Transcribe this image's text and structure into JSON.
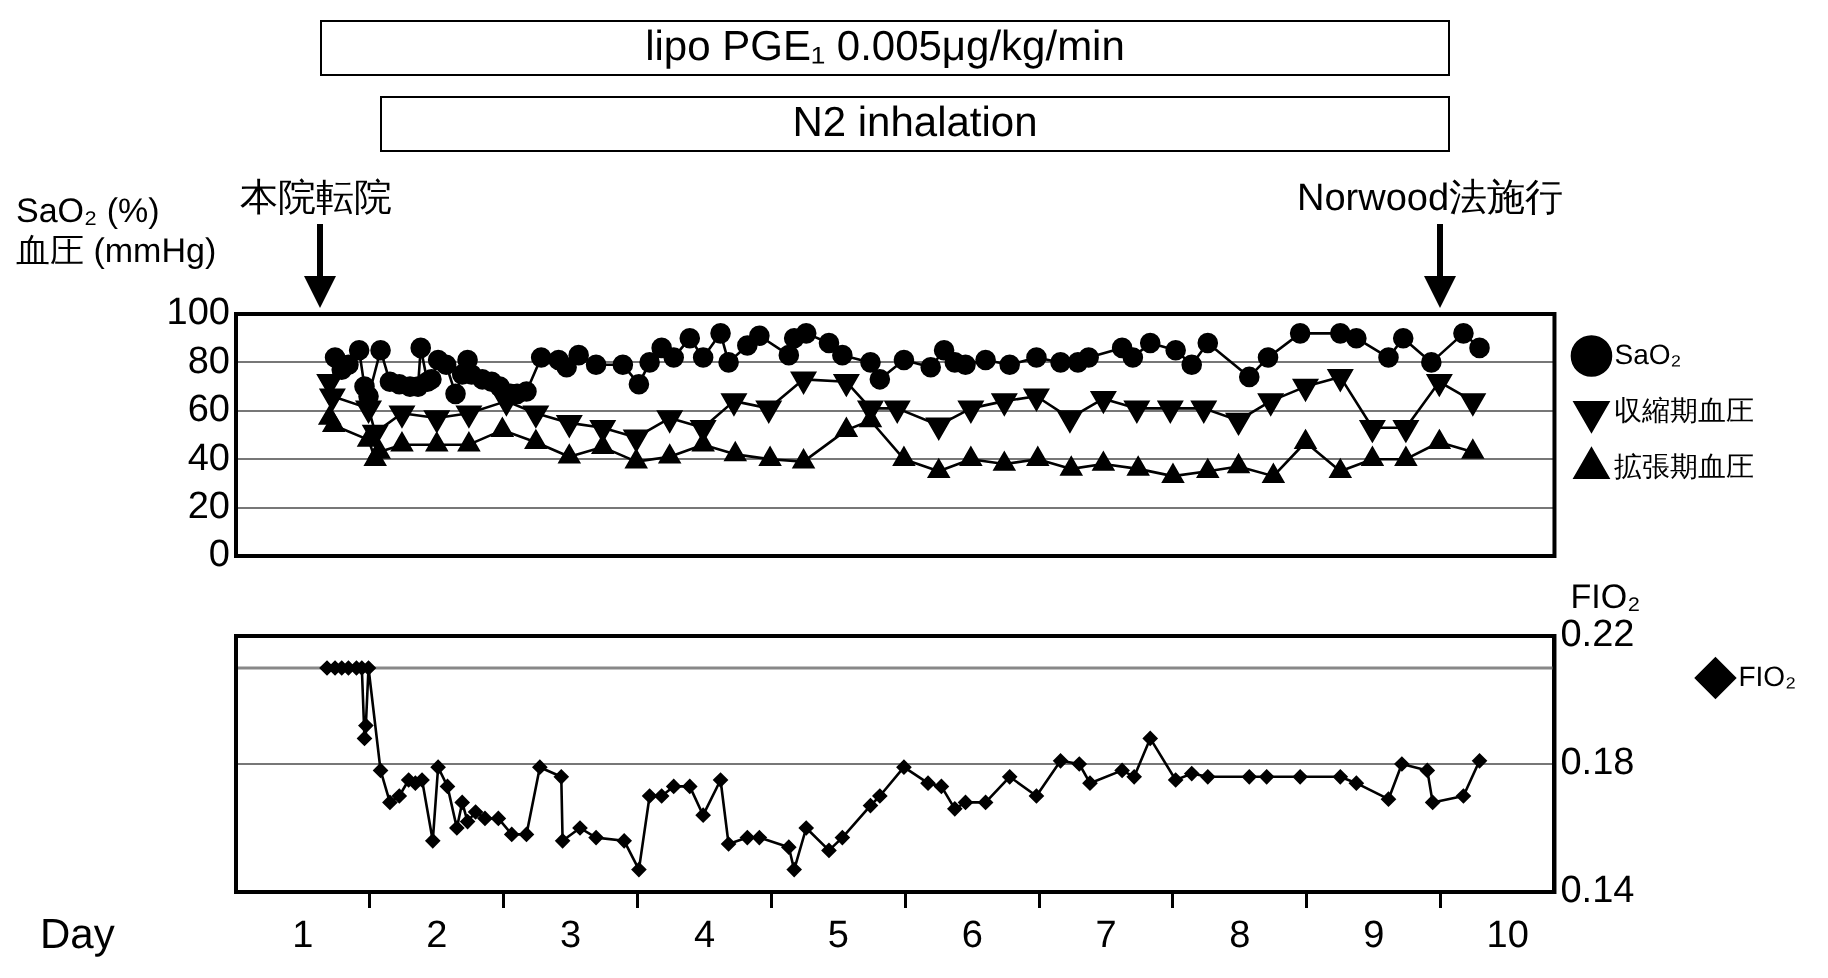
{
  "chart_data": [
    {
      "type": "line",
      "ylabel": "SaO₂ (%)\n血圧  (mmHg)",
      "xlim": [
        0.5,
        10.35
      ],
      "ylim": [
        0,
        100
      ],
      "yticks": [
        0,
        20,
        40,
        60,
        80,
        100
      ],
      "tick_labels": "y",
      "grid": "y",
      "legend": "right",
      "line_style": "solid",
      "annotations": [
        "lipo PGE₁  0.005μg/kg/min",
        "N2 inhalation",
        "本院転院",
        "Norwood法施行"
      ],
      "series": [
        {
          "name": "SaO₂",
          "color": "#000000",
          "marker": "circle",
          "x": [
            1.24,
            1.29,
            1.34,
            1.42,
            1.46,
            1.49,
            1.58,
            1.65,
            1.72,
            1.8,
            1.86,
            1.88,
            1.93,
            1.96,
            2.01,
            2.07,
            2.14,
            2.19,
            2.23,
            2.26,
            2.34,
            2.41,
            2.47,
            2.55,
            2.6,
            2.67,
            2.78,
            2.91,
            2.97,
            3.06,
            3.19,
            3.39,
            3.51,
            3.59,
            3.68,
            3.77,
            3.89,
            3.99,
            4.12,
            4.18,
            4.32,
            4.41,
            4.63,
            4.67,
            4.76,
            4.93,
            5.03,
            5.24,
            5.31,
            5.49,
            5.69,
            5.79,
            5.87,
            5.95,
            6.1,
            6.28,
            6.48,
            6.66,
            6.79,
            6.87,
            7.12,
            7.2,
            7.33,
            7.52,
            7.64,
            7.76,
            8.07,
            8.21,
            8.45,
            8.75,
            8.87,
            9.11,
            9.22,
            9.43,
            9.67,
            9.79
          ],
          "values": [
            82,
            77,
            79,
            85,
            70,
            66,
            85,
            72,
            71,
            70,
            70,
            86,
            72,
            73,
            81,
            79,
            67,
            75,
            81,
            75,
            73,
            72,
            70,
            67,
            67,
            68,
            82,
            81,
            78,
            83,
            79,
            79,
            71,
            80,
            86,
            82,
            90,
            82,
            92,
            80,
            87,
            91,
            83,
            90,
            92,
            88,
            83,
            80,
            73,
            81,
            78,
            85,
            80,
            79,
            81,
            79,
            82,
            80,
            80,
            82,
            86,
            82,
            88,
            85,
            79,
            88,
            74,
            82,
            92,
            92,
            90,
            82,
            90,
            80,
            92,
            86
          ]
        },
        {
          "name": "収縮期血圧",
          "color": "#000000",
          "marker": "triangle-down",
          "x": [
            1.2,
            1.22,
            1.49,
            1.54,
            1.74,
            2.0,
            2.24,
            2.52,
            2.74,
            2.99,
            3.24,
            3.49,
            3.74,
            3.99,
            4.22,
            4.48,
            4.74,
            5.06,
            5.24,
            5.44,
            5.75,
            5.99,
            6.24,
            6.48,
            6.73,
            6.98,
            7.23,
            7.48,
            7.73,
            7.99,
            8.23,
            8.49,
            8.75,
            8.99,
            9.24,
            9.49,
            9.74
          ],
          "values": [
            72,
            66,
            61,
            51,
            59,
            57,
            59,
            64,
            59,
            55,
            53,
            49,
            57,
            53,
            64,
            61,
            73,
            72,
            61,
            61,
            54,
            61,
            64,
            66,
            57,
            65,
            61,
            61,
            61,
            56,
            64,
            70,
            74,
            53,
            53,
            72,
            64
          ]
        },
        {
          "name": "拡張期血圧",
          "color": "#000000",
          "marker": "triangle",
          "x": [
            1.2,
            1.23,
            1.49,
            1.54,
            1.57,
            1.74,
            2.0,
            2.24,
            2.49,
            2.74,
            2.99,
            3.24,
            3.49,
            3.74,
            3.99,
            4.23,
            4.49,
            4.74,
            5.06,
            5.24,
            5.49,
            5.75,
            5.99,
            6.24,
            6.49,
            6.74,
            6.98,
            7.24,
            7.5,
            7.76,
            7.99,
            8.25,
            8.49,
            8.75,
            8.99,
            9.24,
            9.49,
            9.74
          ],
          "values": [
            57,
            54,
            48,
            40,
            43,
            46,
            46,
            46,
            52,
            47,
            41,
            45,
            39,
            41,
            46,
            42,
            40,
            39,
            52,
            56,
            40,
            35,
            40,
            38,
            40,
            36,
            38,
            36,
            33,
            35,
            37,
            33,
            47,
            35,
            40,
            40,
            47,
            43
          ]
        }
      ]
    },
    {
      "type": "line",
      "xlabel": "Day",
      "ylabel": "FIO₂",
      "xlim": [
        0.5,
        10.35
      ],
      "xticks": [
        1,
        {
          "value": 1.5,
          "label": null
        },
        2,
        {
          "value": 2.5,
          "label": null
        },
        3,
        {
          "value": 3.5,
          "label": null
        },
        4,
        {
          "value": 4.5,
          "label": null
        },
        5,
        {
          "value": 5.5,
          "label": null
        },
        6,
        {
          "value": 6.5,
          "label": null
        },
        7,
        {
          "value": 7.5,
          "label": null
        },
        8,
        {
          "value": 8.5,
          "label": null
        },
        9,
        {
          "value": 9.5,
          "label": null
        },
        10
      ],
      "ylim": [
        0.14,
        0.22
      ],
      "yticks": [
        0.14,
        0.18,
        0.22
      ],
      "grid": "y",
      "legend": "right",
      "line_style": "solid",
      "ref_lines": [
        {
          "axis": "y",
          "value": 0.21,
          "color": "#888888"
        }
      ],
      "series": [
        {
          "name": "FIO₂",
          "color": "#000000",
          "marker": "diamond",
          "x": [
            1.18,
            1.24,
            1.29,
            1.34,
            1.4,
            1.44,
            1.46,
            1.47,
            1.49,
            1.58,
            1.65,
            1.72,
            1.79,
            1.84,
            1.89,
            1.97,
            2.01,
            2.08,
            2.15,
            2.19,
            2.23,
            2.29,
            2.36,
            2.46,
            2.56,
            2.67,
            2.77,
            2.93,
            2.94,
            3.07,
            3.19,
            3.4,
            3.51,
            3.59,
            3.68,
            3.77,
            3.89,
            3.99,
            4.12,
            4.18,
            4.32,
            4.41,
            4.63,
            4.67,
            4.76,
            4.93,
            5.03,
            5.24,
            5.31,
            5.49,
            5.67,
            5.77,
            5.87,
            5.95,
            6.1,
            6.28,
            6.48,
            6.66,
            6.8,
            6.88,
            7.12,
            7.21,
            7.33,
            7.52,
            7.64,
            7.76,
            8.07,
            8.2,
            8.45,
            8.75,
            8.87,
            9.11,
            9.21,
            9.4,
            9.44,
            9.67,
            9.79
          ],
          "values": [
            0.21,
            0.21,
            0.21,
            0.21,
            0.21,
            0.21,
            0.188,
            0.192,
            0.21,
            0.178,
            0.168,
            0.17,
            0.175,
            0.174,
            0.175,
            0.156,
            0.179,
            0.173,
            0.16,
            0.168,
            0.162,
            0.165,
            0.163,
            0.163,
            0.158,
            0.158,
            0.179,
            0.176,
            0.156,
            0.16,
            0.157,
            0.156,
            0.147,
            0.17,
            0.17,
            0.173,
            0.173,
            0.164,
            0.175,
            0.155,
            0.157,
            0.157,
            0.154,
            0.147,
            0.16,
            0.153,
            0.157,
            0.167,
            0.17,
            0.179,
            0.174,
            0.173,
            0.166,
            0.168,
            0.168,
            0.176,
            0.17,
            0.181,
            0.18,
            0.174,
            0.178,
            0.176,
            0.188,
            0.175,
            0.177,
            0.176,
            0.176,
            0.176,
            0.176,
            0.176,
            0.174,
            0.169,
            0.18,
            0.178,
            0.168,
            0.17,
            0.181
          ]
        }
      ]
    }
  ]
}
